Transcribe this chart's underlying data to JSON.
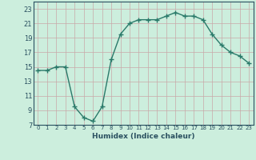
{
  "x": [
    0,
    1,
    2,
    3,
    4,
    5,
    6,
    7,
    8,
    9,
    10,
    11,
    12,
    13,
    14,
    15,
    16,
    17,
    18,
    19,
    20,
    21,
    22,
    23
  ],
  "y": [
    14.5,
    14.5,
    15.0,
    15.0,
    9.5,
    8.0,
    7.5,
    9.5,
    16.0,
    19.5,
    21.0,
    21.5,
    21.5,
    21.5,
    22.0,
    22.5,
    22.0,
    22.0,
    21.5,
    19.5,
    18.0,
    17.0,
    16.5,
    15.5
  ],
  "line_color": "#2a7a6a",
  "marker": "+",
  "marker_size": 4,
  "xlabel": "Humidex (Indice chaleur)",
  "xlim": [
    -0.5,
    23.5
  ],
  "ylim": [
    7,
    24
  ],
  "yticks": [
    7,
    9,
    11,
    13,
    15,
    17,
    19,
    21,
    23
  ],
  "xticks": [
    0,
    1,
    2,
    3,
    4,
    5,
    6,
    7,
    8,
    9,
    10,
    11,
    12,
    13,
    14,
    15,
    16,
    17,
    18,
    19,
    20,
    21,
    22,
    23
  ],
  "grid_color": "#c8a8a8",
  "bg_color": "#cceedd",
  "tick_color": "#2a5060",
  "linewidth": 1.0
}
